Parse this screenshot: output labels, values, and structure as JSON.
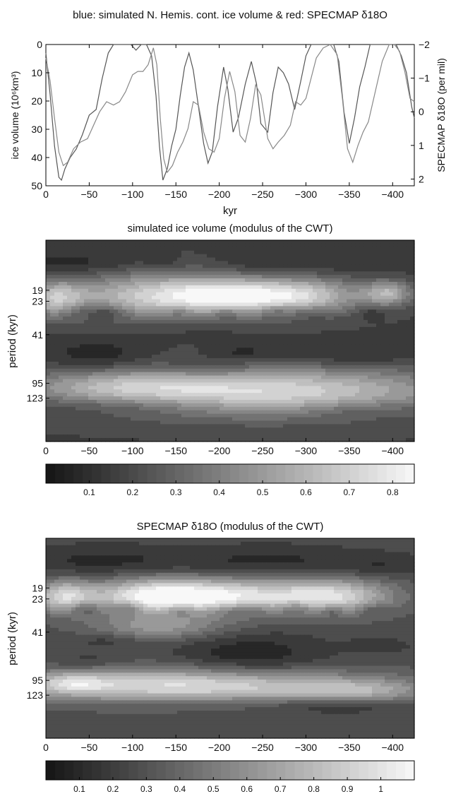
{
  "chart_data": [
    {
      "type": "line",
      "title": "blue: simulated N. Hemis. cont. ice volume & red: SPECMAP δ18O",
      "xlabel": "kyr",
      "ylabel": "ice volume (10⁶km³)",
      "y2label": "SPECMAP δ18O (per mil)",
      "xlim": [
        0,
        -425
      ],
      "ylim": [
        0,
        50
      ],
      "y2lim": [
        -2,
        2.2
      ],
      "y_inverted": true,
      "y2_inverted": true,
      "x_ticks": [
        "0",
        "−50",
        "−100",
        "−150",
        "−200",
        "−250",
        "−300",
        "−350",
        "−400"
      ],
      "y_ticks": [
        "0",
        "10",
        "20",
        "30",
        "40",
        "50"
      ],
      "y2_ticks": [
        "−2",
        "−1",
        "0",
        "1",
        "2"
      ],
      "grid": false,
      "series": [
        {
          "name": "simulated N. Hemis. cont. ice volume",
          "color": "#555555",
          "x": [
            0,
            -5,
            -10,
            -15,
            -18,
            -22,
            -28,
            -35,
            -42,
            -50,
            -58,
            -65,
            -72,
            -78,
            -84,
            -90,
            -98,
            -104,
            -110,
            -116,
            -122,
            -127,
            -131,
            -135,
            -140,
            -145,
            -150,
            -155,
            -160,
            -165,
            -170,
            -176,
            -182,
            -187,
            -192,
            -198,
            -205,
            -210,
            -216,
            -222,
            -230,
            -237,
            -243,
            -248,
            -256,
            -262,
            -268,
            -274,
            -280,
            -287,
            -294,
            -300,
            -306,
            -313,
            -320,
            -326,
            -332,
            -338,
            -344,
            -350,
            -356,
            -362,
            -368,
            -374,
            -380,
            -386,
            -392,
            -398,
            -404,
            -410,
            -416,
            -422,
            -425
          ],
          "values": [
            3,
            18,
            36,
            47,
            48,
            44,
            40,
            37,
            32,
            25,
            23,
            12,
            3,
            0,
            0,
            0,
            0,
            2,
            0,
            0,
            4,
            18,
            36,
            48,
            44,
            36,
            30,
            18,
            8,
            3,
            9,
            22,
            35,
            42,
            38,
            22,
            8,
            16,
            31,
            26,
            14,
            6,
            14,
            28,
            31,
            17,
            8,
            10,
            14,
            23,
            13,
            4,
            0,
            0,
            0,
            0,
            0,
            6,
            24,
            35,
            26,
            15,
            8,
            0,
            0,
            0,
            0,
            0,
            0,
            4,
            10,
            22,
            26
          ]
        },
        {
          "name": "SPECMAP δ18O",
          "color": "#888888",
          "x": [
            0,
            -5,
            -10,
            -15,
            -20,
            -25,
            -32,
            -40,
            -48,
            -55,
            -62,
            -70,
            -78,
            -85,
            -92,
            -100,
            -106,
            -112,
            -118,
            -124,
            -128,
            -132,
            -136,
            -140,
            -146,
            -152,
            -158,
            -164,
            -170,
            -176,
            -182,
            -188,
            -194,
            -200,
            -206,
            -212,
            -218,
            -224,
            -230,
            -236,
            -242,
            -248,
            -256,
            -262,
            -268,
            -275,
            -282,
            -288,
            -294,
            -300,
            -306,
            -312,
            -320,
            -328,
            -336,
            -342,
            -348,
            -354,
            -360,
            -366,
            -372,
            -380,
            -388,
            -396,
            -402,
            -408,
            -414,
            -420,
            -425
          ],
          "values": [
            -1.6,
            -0.9,
            0.2,
            1.2,
            1.6,
            1.5,
            1.1,
            0.9,
            0.8,
            0.4,
            0.0,
            -0.3,
            -0.2,
            -0.3,
            -0.6,
            -1.1,
            -1.2,
            -1.2,
            -1.4,
            -1.9,
            -1.4,
            0.2,
            1.4,
            1.8,
            1.6,
            1.2,
            0.9,
            0.5,
            -0.3,
            -0.2,
            0.6,
            1.1,
            1.2,
            0.8,
            -0.4,
            -1.2,
            -0.6,
            0.7,
            0.9,
            0.2,
            -0.8,
            -0.5,
            0.8,
            1.1,
            0.9,
            0.7,
            0.4,
            -0.3,
            -0.2,
            -0.4,
            -1.0,
            -1.6,
            -1.9,
            -2.0,
            -1.7,
            -0.4,
            1.1,
            1.5,
            1.0,
            0.6,
            0.3,
            -0.6,
            -1.5,
            -2.0,
            -2.0,
            -1.8,
            -1.2,
            -0.4,
            -0.3
          ]
        }
      ]
    },
    {
      "type": "heatmap",
      "title": "simulated ice volume (modulus of the CWT)",
      "xlabel": "",
      "ylabel": "period (kyr)",
      "xlim": [
        0,
        -425
      ],
      "x_ticks": [
        "0",
        "−50",
        "−100",
        "−150",
        "−200",
        "−250",
        "−300",
        "−350",
        "−400"
      ],
      "y_tick_labels": [
        "19",
        "23",
        "41",
        "95",
        "123"
      ],
      "colorbar_ticks": [
        "0.1",
        "0.2",
        "0.3",
        "0.4",
        "0.5",
        "0.6",
        "0.7",
        "0.8"
      ],
      "colorbar_range": [
        0,
        0.85
      ],
      "colormap": "gray",
      "background": 0.2,
      "blobs": [
        {
          "x": 0,
          "period": 12,
          "w": 45,
          "h": 0.18,
          "v": -0.1
        },
        {
          "x": -70,
          "period": 12,
          "w": 30,
          "h": 0.12,
          "v": -0.08
        },
        {
          "x": -135,
          "period": 12,
          "w": 15,
          "h": 0.1,
          "v": -0.08
        },
        {
          "x": -260,
          "period": 12,
          "w": 40,
          "h": 0.15,
          "v": -0.1
        },
        {
          "x": -370,
          "period": 12,
          "w": 40,
          "h": 0.12,
          "v": -0.08
        },
        {
          "x": -125,
          "period": 21,
          "w": 75,
          "h": 0.28,
          "v": 0.55
        },
        {
          "x": -215,
          "period": 21,
          "w": 55,
          "h": 0.22,
          "v": 0.5
        },
        {
          "x": -10,
          "period": 22,
          "w": 25,
          "h": 0.22,
          "v": 0.45
        },
        {
          "x": -300,
          "period": 21,
          "w": 50,
          "h": 0.22,
          "v": 0.5
        },
        {
          "x": -395,
          "period": 20,
          "w": 20,
          "h": 0.15,
          "v": 0.45
        },
        {
          "x": -45,
          "period": 27,
          "w": 20,
          "h": 0.1,
          "v": -0.15
        },
        {
          "x": -75,
          "period": 28,
          "w": 14,
          "h": 0.08,
          "v": -0.15
        },
        {
          "x": -153,
          "period": 27,
          "w": 10,
          "h": 0.08,
          "v": -0.15
        },
        {
          "x": -207,
          "period": 28,
          "w": 12,
          "h": 0.08,
          "v": -0.15
        },
        {
          "x": -265,
          "period": 27,
          "w": 15,
          "h": 0.08,
          "v": -0.15
        },
        {
          "x": -305,
          "period": 28,
          "w": 15,
          "h": 0.08,
          "v": -0.12
        },
        {
          "x": -375,
          "period": 28,
          "w": 12,
          "h": 0.08,
          "v": -0.12
        },
        {
          "x": -160,
          "period": 36,
          "w": 60,
          "h": 0.12,
          "v": -0.05
        },
        {
          "x": -60,
          "period": 60,
          "w": 40,
          "h": 0.2,
          "v": -0.15
        },
        {
          "x": -185,
          "period": 72,
          "w": 35,
          "h": 0.12,
          "v": -0.12
        },
        {
          "x": -225,
          "period": 56,
          "w": 25,
          "h": 0.1,
          "v": -0.1
        },
        {
          "x": -340,
          "period": 58,
          "w": 70,
          "h": 0.15,
          "v": -0.12
        },
        {
          "x": -260,
          "period": 110,
          "w": 150,
          "h": 0.3,
          "v": 0.65
        },
        {
          "x": -80,
          "period": 100,
          "w": 80,
          "h": 0.2,
          "v": 0.3
        },
        {
          "x": -100,
          "period": 140,
          "w": 80,
          "h": 0.12,
          "v": -0.12
        },
        {
          "x": -360,
          "period": 150,
          "w": 50,
          "h": 0.12,
          "v": -0.12
        }
      ]
    },
    {
      "type": "heatmap",
      "title": "SPECMAP δ18O (modulus of the CWT)",
      "xlabel": "",
      "ylabel": "period (kyr)",
      "xlim": [
        0,
        -425
      ],
      "x_ticks": [
        "0",
        "−50",
        "−100",
        "−150",
        "−200",
        "−250",
        "−300",
        "−350",
        "−400"
      ],
      "y_tick_labels": [
        "19",
        "23",
        "41",
        "95",
        "123"
      ],
      "colorbar_ticks": [
        "0.1",
        "0.2",
        "0.3",
        "0.4",
        "0.5",
        "0.6",
        "0.7",
        "0.8",
        "0.9",
        "1"
      ],
      "colorbar_range": [
        0,
        1.1
      ],
      "colormap": "gray",
      "background": 0.25,
      "blobs": [
        {
          "x": -60,
          "period": 12,
          "w": 70,
          "h": 0.2,
          "v": -0.15
        },
        {
          "x": -260,
          "period": 12,
          "w": 80,
          "h": 0.2,
          "v": -0.15
        },
        {
          "x": -390,
          "period": 13,
          "w": 35,
          "h": 0.15,
          "v": -0.1
        },
        {
          "x": -20,
          "period": 22,
          "w": 25,
          "h": 0.2,
          "v": 0.55
        },
        {
          "x": -120,
          "period": 22,
          "w": 50,
          "h": 0.22,
          "v": 0.65
        },
        {
          "x": -210,
          "period": 22,
          "w": 60,
          "h": 0.22,
          "v": 0.6
        },
        {
          "x": -330,
          "period": 22,
          "w": 50,
          "h": 0.22,
          "v": 0.6
        },
        {
          "x": -45,
          "period": 27,
          "w": 12,
          "h": 0.08,
          "v": -0.2
        },
        {
          "x": -95,
          "period": 27,
          "w": 12,
          "h": 0.08,
          "v": -0.2
        },
        {
          "x": -155,
          "period": 28,
          "w": 12,
          "h": 0.08,
          "v": -0.2
        },
        {
          "x": -225,
          "period": 28,
          "w": 25,
          "h": 0.08,
          "v": -0.2
        },
        {
          "x": -290,
          "period": 27,
          "w": 12,
          "h": 0.08,
          "v": -0.2
        },
        {
          "x": -330,
          "period": 28,
          "w": 10,
          "h": 0.08,
          "v": -0.2
        },
        {
          "x": -375,
          "period": 28,
          "w": 12,
          "h": 0.08,
          "v": -0.15
        },
        {
          "x": -130,
          "period": 38,
          "w": 55,
          "h": 0.15,
          "v": 0.3
        },
        {
          "x": -70,
          "period": 47,
          "w": 25,
          "h": 0.1,
          "v": -0.1
        },
        {
          "x": -235,
          "period": 62,
          "w": 60,
          "h": 0.28,
          "v": -0.2
        },
        {
          "x": -385,
          "period": 52,
          "w": 25,
          "h": 0.1,
          "v": -0.1
        },
        {
          "x": -50,
          "period": 68,
          "w": 30,
          "h": 0.1,
          "v": -0.1
        },
        {
          "x": -160,
          "period": 105,
          "w": 140,
          "h": 0.22,
          "v": 0.65
        },
        {
          "x": -360,
          "period": 115,
          "w": 60,
          "h": 0.15,
          "v": 0.3
        },
        {
          "x": -30,
          "period": 100,
          "w": 30,
          "h": 0.12,
          "v": 0.3
        },
        {
          "x": -340,
          "period": 148,
          "w": 50,
          "h": 0.1,
          "v": -0.15
        },
        {
          "x": -200,
          "period": 140,
          "w": 110,
          "h": 0.12,
          "v": -0.1
        }
      ]
    }
  ]
}
